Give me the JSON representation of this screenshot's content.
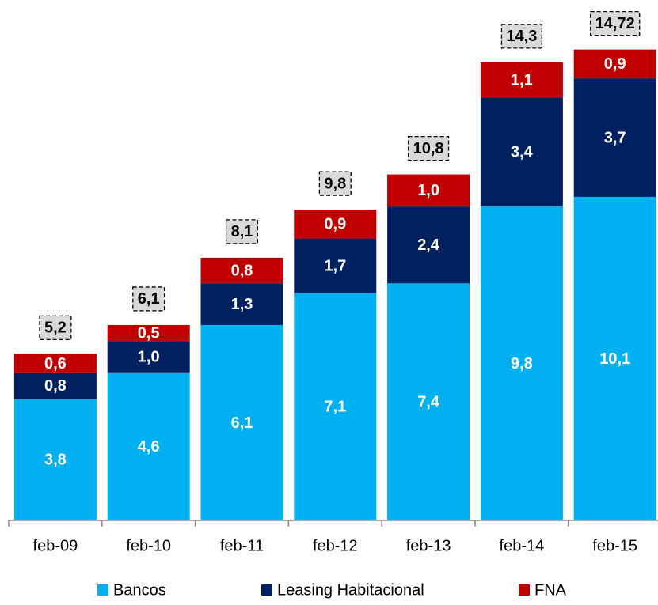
{
  "chart_data": {
    "type": "bar",
    "stacked": true,
    "categories": [
      "feb-09",
      "feb-10",
      "feb-11",
      "feb-12",
      "feb-13",
      "feb-14",
      "feb-15"
    ],
    "series": [
      {
        "name": "Bancos",
        "color": "#00B0F0",
        "values": [
          3.8,
          4.6,
          6.1,
          7.1,
          7.4,
          9.8,
          10.1
        ],
        "value_labels": [
          "3,8",
          "4,6",
          "6,1",
          "7,1",
          "7,4",
          "9,8",
          "10,1"
        ]
      },
      {
        "name": "Leasing Habitacional",
        "color": "#002060",
        "values": [
          0.8,
          1.0,
          1.3,
          1.7,
          2.4,
          3.4,
          3.7
        ],
        "value_labels": [
          "0,8",
          "1,0",
          "1,3",
          "1,7",
          "2,4",
          "3,4",
          "3,7"
        ]
      },
      {
        "name": "FNA",
        "color": "#C00000",
        "values": [
          0.6,
          0.5,
          0.8,
          0.9,
          1.0,
          1.1,
          0.9
        ],
        "value_labels": [
          "0,6",
          "0,5",
          "0,8",
          "0,9",
          "1,0",
          "1,1",
          "0,9"
        ]
      }
    ],
    "totals": {
      "values": [
        5.2,
        6.1,
        8.1,
        9.8,
        10.8,
        14.3,
        14.72
      ],
      "value_labels": [
        "5,2",
        "6,1",
        "8,1",
        "9,8",
        "10,8",
        "14,3",
        "14,72"
      ]
    },
    "legend": "bottom"
  }
}
